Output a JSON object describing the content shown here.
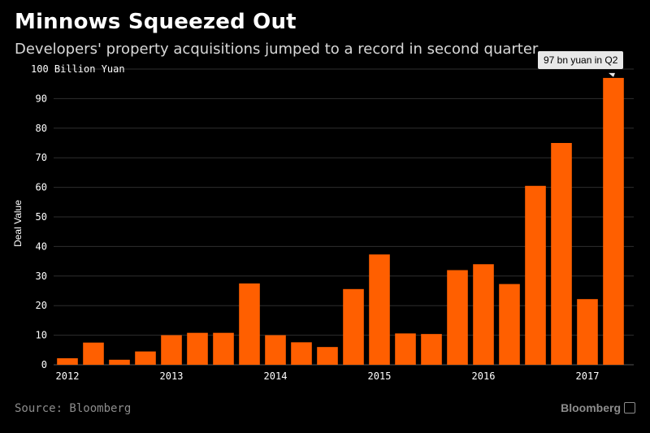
{
  "title": "Minnows Squeezed Out",
  "subtitle": "Developers' property acquisitions jumped to a record in second quarter",
  "source": "Source: Bloomberg",
  "brand": "Bloomberg",
  "annotation": "97 bn yuan in Q2",
  "colors": {
    "bar": "#ff5f00",
    "background": "#000000",
    "grid": "#2e2e2e",
    "text": "#ffffff"
  },
  "chart_data": {
    "type": "bar",
    "ylabel": "Deal Value",
    "unit_label": "Billion Yuan",
    "ylim": [
      0,
      100
    ],
    "yticks": [
      0,
      10,
      20,
      30,
      40,
      50,
      60,
      70,
      80,
      90,
      100
    ],
    "xtick_labels": [
      "2012",
      "2013",
      "2014",
      "2015",
      "2016",
      "2017"
    ],
    "categories": [
      "2012 Q1",
      "2012 Q2",
      "2012 Q3",
      "2012 Q4",
      "2013 Q1",
      "2013 Q2",
      "2013 Q3",
      "2013 Q4",
      "2014 Q1",
      "2014 Q2",
      "2014 Q3",
      "2014 Q4",
      "2015 Q1",
      "2015 Q2",
      "2015 Q3",
      "2015 Q4",
      "2016 Q1",
      "2016 Q2",
      "2016 Q3",
      "2016 Q4",
      "2017 Q1",
      "2017 Q2"
    ],
    "values": [
      2.2,
      7.5,
      1.7,
      4.5,
      10,
      10.8,
      10.8,
      27.5,
      10,
      7.6,
      6,
      25.6,
      37.3,
      10.6,
      10.4,
      32,
      34,
      27.3,
      60.5,
      75,
      22.2,
      97
    ],
    "grid": true
  }
}
